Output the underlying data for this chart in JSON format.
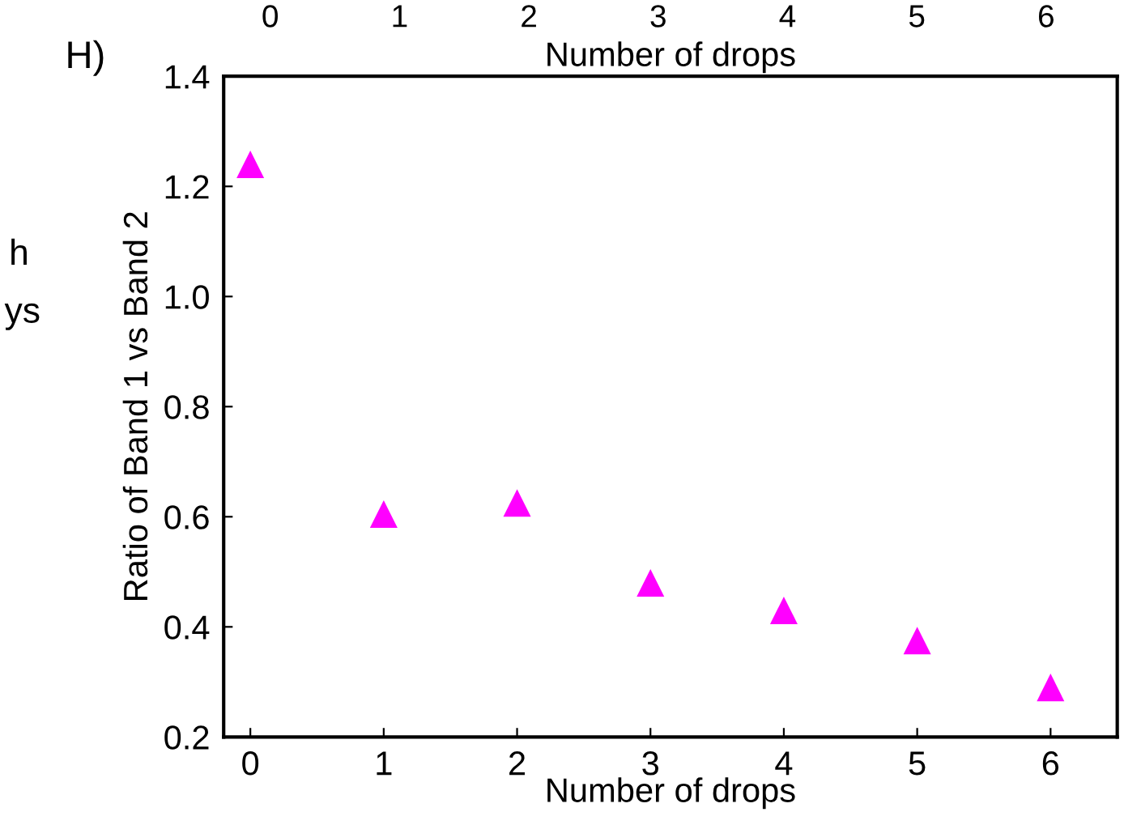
{
  "chart_data": {
    "type": "scatter",
    "xlabel": "Number of drops",
    "ylabel": "Ratio of Band 1 vs Band 2",
    "x2label": "Number of drops",
    "x": [
      0,
      1,
      2,
      3,
      4,
      5,
      6
    ],
    "series": [
      {
        "color": "#ff00ff",
        "values": [
          1.24,
          0.605,
          0.625,
          0.48,
          0.43,
          0.375,
          0.29
        ]
      }
    ],
    "marker": "triangle",
    "xlim": [
      -0.2,
      6.5
    ],
    "xticks": [
      0,
      1,
      2,
      3,
      4,
      5,
      6
    ],
    "x2lim": [
      -0.36,
      6.55
    ],
    "x2ticks": [
      0,
      1,
      2,
      3,
      4,
      5,
      6
    ],
    "ylim": [
      0.2,
      1.4
    ],
    "yticks": [
      {
        "value": 0.2,
        "label": "0.2"
      },
      {
        "value": 0.4,
        "label": "0.4"
      },
      {
        "value": 0.6,
        "label": "0.6"
      },
      {
        "value": 0.8,
        "label": "0.8"
      },
      {
        "value": 1.0,
        "label": "1.0"
      },
      {
        "value": 1.2,
        "label": "1.2"
      },
      {
        "value": 1.4,
        "label": "1.4"
      }
    ],
    "grid": false,
    "legend": false,
    "annotations": [
      "H)",
      "h",
      "ys"
    ]
  }
}
